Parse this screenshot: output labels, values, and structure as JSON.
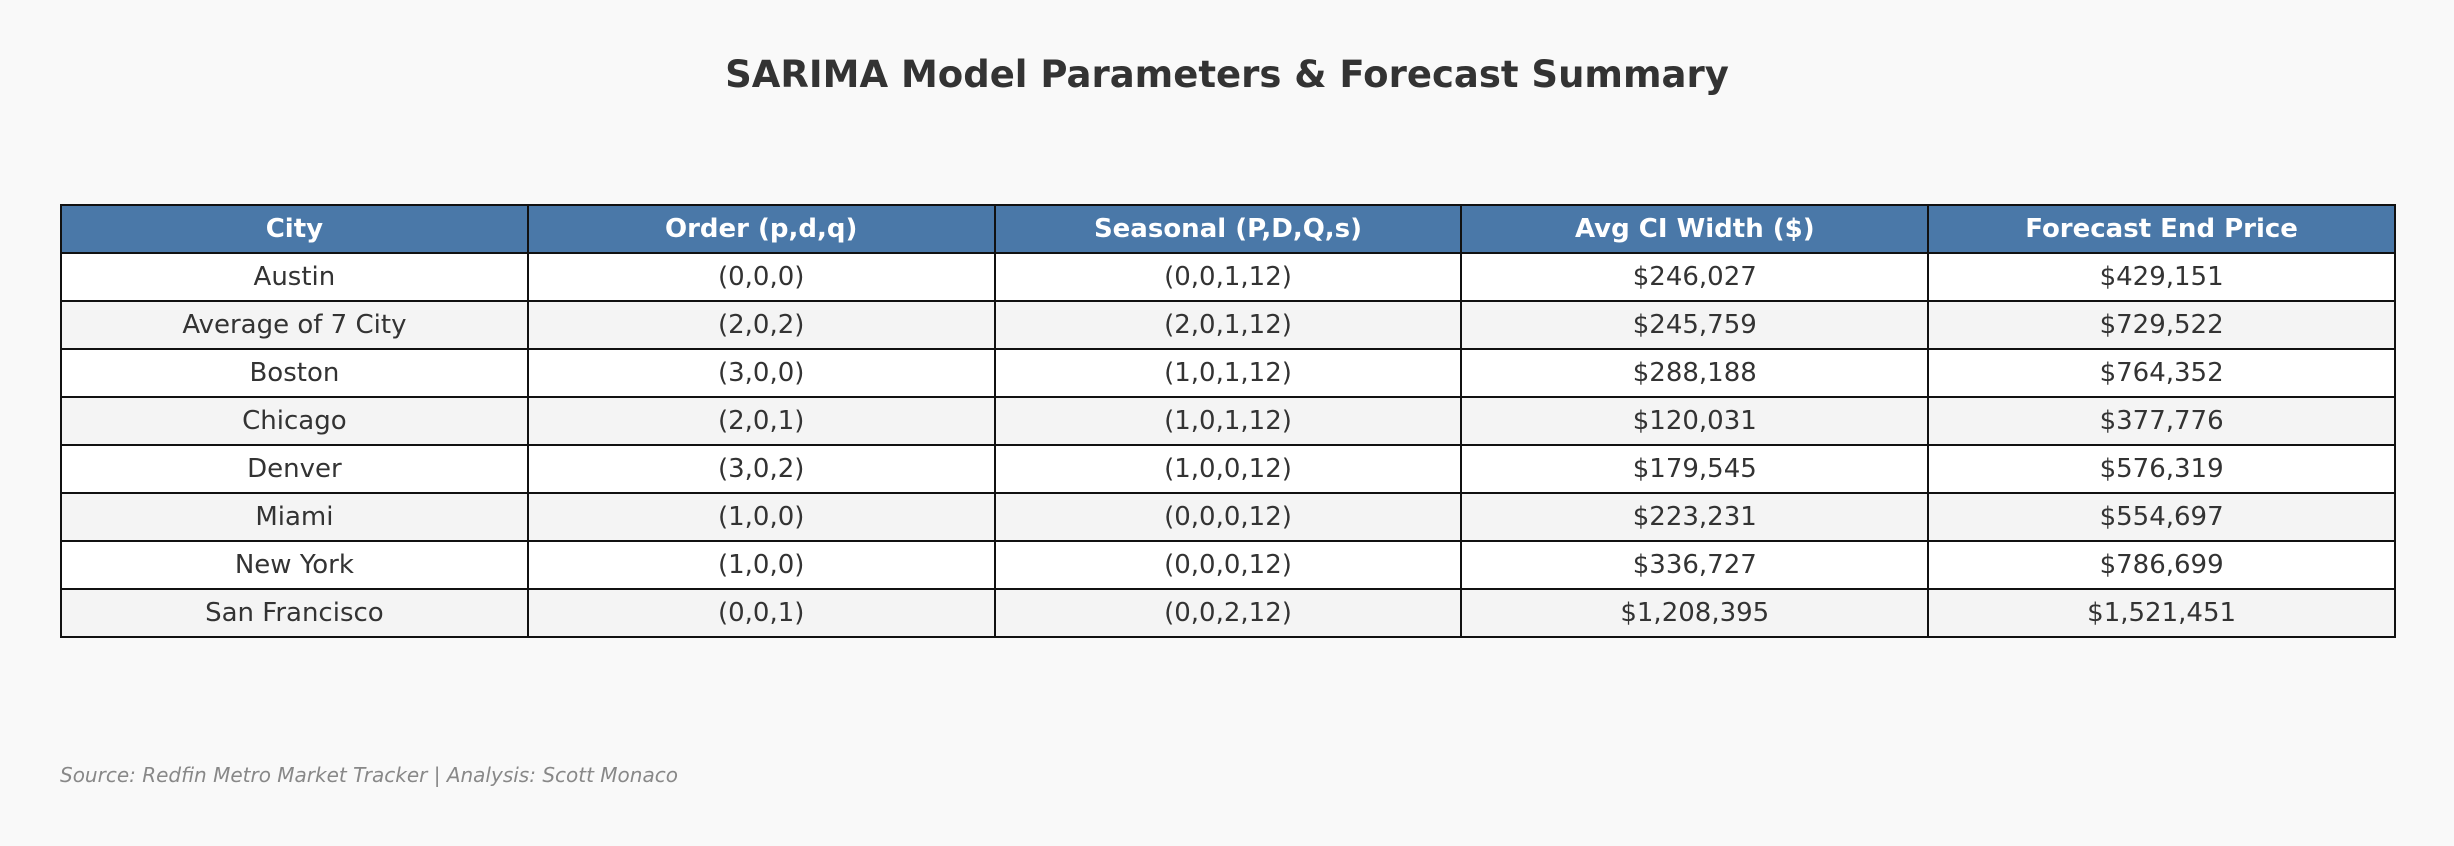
{
  "chart_data": {
    "type": "table",
    "title": "SARIMA Model Parameters & Forecast Summary",
    "columns": [
      "City",
      "Order (p,d,q)",
      "Seasonal (P,D,Q,s)",
      "Avg CI Width ($)",
      "Forecast End Price"
    ],
    "rows": [
      [
        "Austin",
        "(0,0,0)",
        "(0,0,1,12)",
        "$246,027",
        "$429,151"
      ],
      [
        "Average of 7 City",
        "(2,0,2)",
        "(2,0,1,12)",
        "$245,759",
        "$729,522"
      ],
      [
        "Boston",
        "(3,0,0)",
        "(1,0,1,12)",
        "$288,188",
        "$764,352"
      ],
      [
        "Chicago",
        "(2,0,1)",
        "(1,0,1,12)",
        "$120,031",
        "$377,776"
      ],
      [
        "Denver",
        "(3,0,2)",
        "(1,0,0,12)",
        "$179,545",
        "$576,319"
      ],
      [
        "Miami",
        "(1,0,0)",
        "(0,0,0,12)",
        "$223,231",
        "$554,697"
      ],
      [
        "New York",
        "(1,0,0)",
        "(0,0,0,12)",
        "$336,727",
        "$786,699"
      ],
      [
        "San Francisco",
        "(0,0,1)",
        "(0,0,2,12)",
        "$1,208,395",
        "$1,521,451"
      ]
    ],
    "header_color": "#4a78a8",
    "stripe_color": "#f4f4f4"
  },
  "source_note": "Source: Redfin Metro Market Tracker | Analysis: Scott Monaco"
}
